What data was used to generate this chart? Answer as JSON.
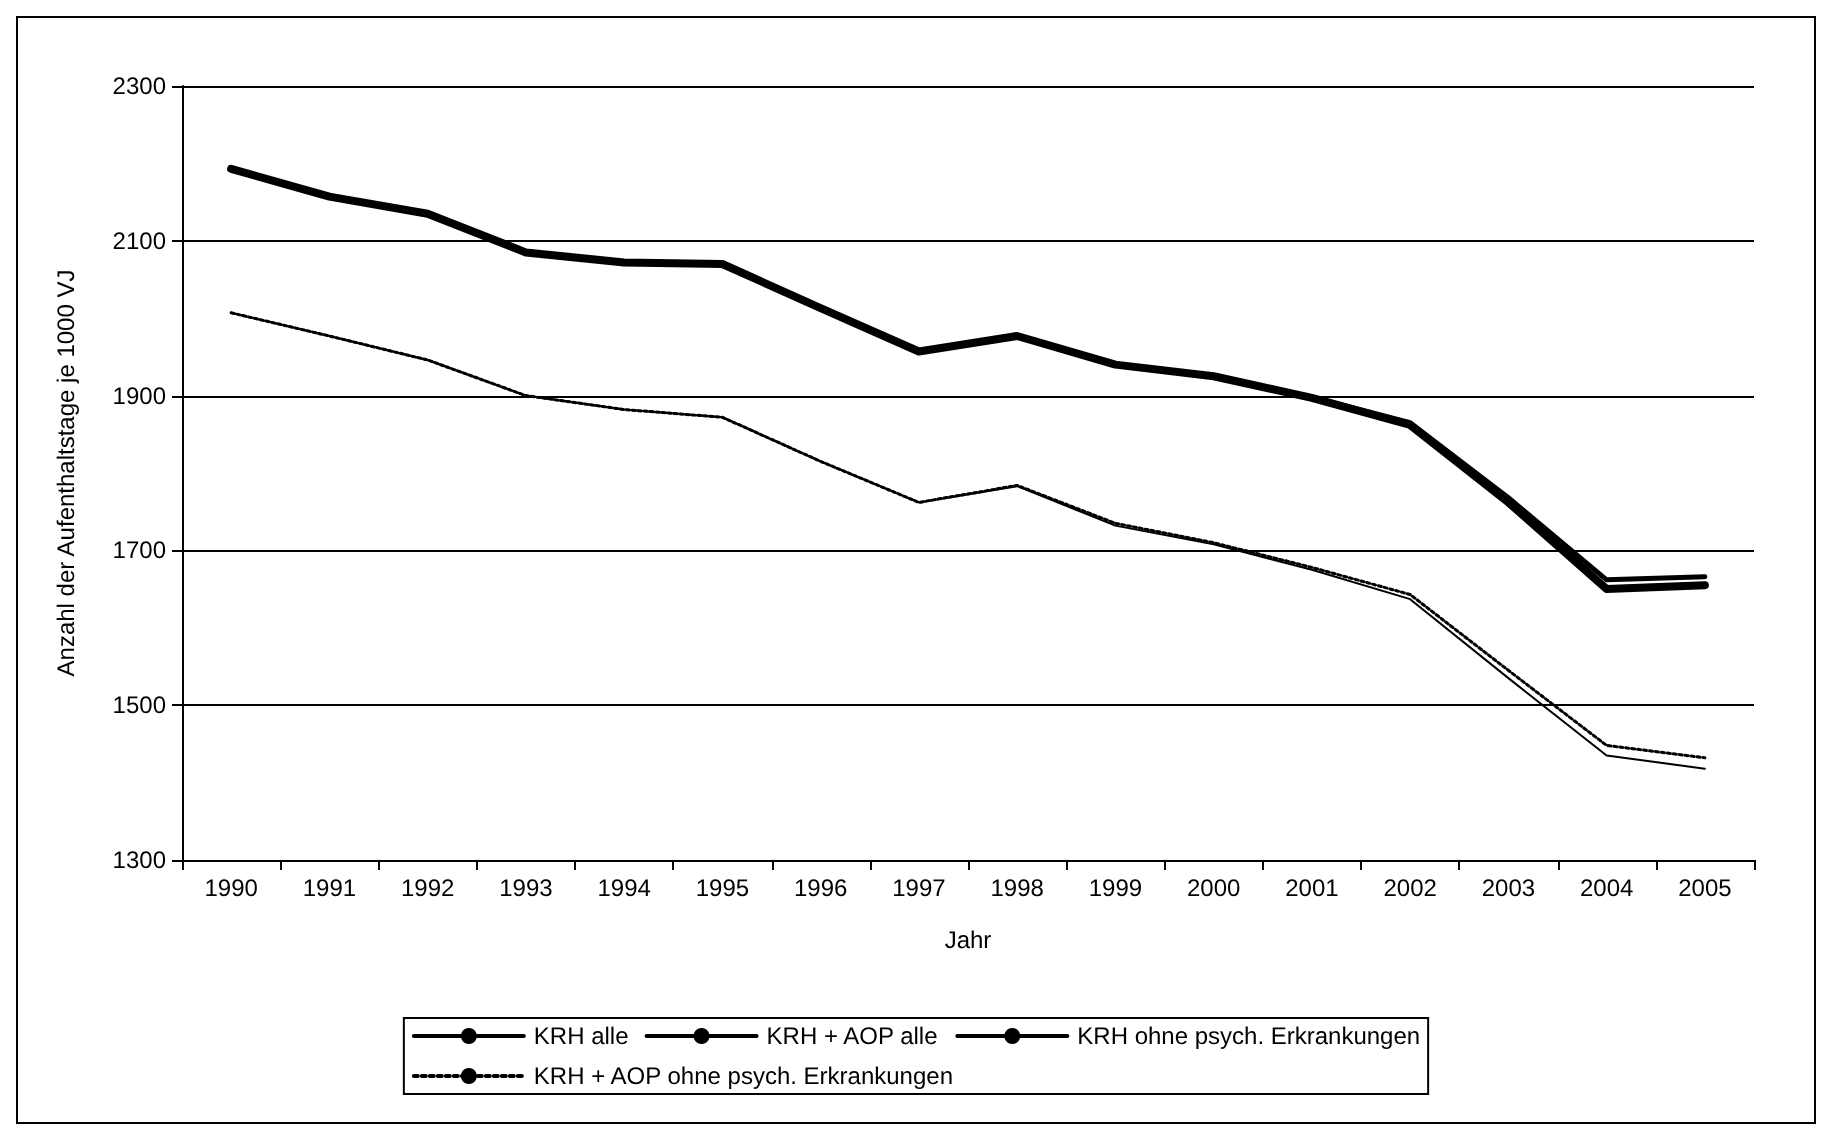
{
  "chart_data": {
    "type": "line",
    "xlabel": "Jahr",
    "ylabel": "Anzahl der Aufenthaltstage je 1000 VJ",
    "categories": [
      "1990",
      "1991",
      "1992",
      "1993",
      "1994",
      "1995",
      "1996",
      "1997",
      "1998",
      "1999",
      "2000",
      "2001",
      "2002",
      "2003",
      "2004",
      "2005"
    ],
    "series": [
      {
        "name": "KRH alle",
        "color": "#000000",
        "line_style": "solid",
        "values": [
          2193,
          2157,
          2135,
          2085,
          2072,
          2070,
          2013,
          1957,
          1977,
          1940,
          1925,
          1897,
          1862,
          1762,
          1650,
          1655
        ]
      },
      {
        "name": "KRH + AOP alle",
        "color": "#000000",
        "line_style": "solid",
        "values": [
          2193,
          2157,
          2135,
          2085,
          2072,
          2070,
          2013,
          1957,
          1977,
          1940,
          1925,
          1898,
          1865,
          1768,
          1662,
          1666
        ]
      },
      {
        "name": "KRH ohne psych. Erkrankungen",
        "color": "#000000",
        "line_style": "solid",
        "values": [
          2007,
          1977,
          1946,
          1900,
          1882,
          1872,
          1815,
          1762,
          1783,
          1732,
          1708,
          1675,
          1637,
          1535,
          1435,
          1418
        ]
      },
      {
        "name": "KRH + AOP ohne psych. Erkrankungen",
        "color": "#000000",
        "line_style": "dotted",
        "values": [
          2007,
          1977,
          1946,
          1900,
          1882,
          1872,
          1815,
          1762,
          1784,
          1735,
          1710,
          1678,
          1643,
          1545,
          1448,
          1432
        ]
      }
    ],
    "ylim": [
      1300,
      2300
    ],
    "yticks": [
      1300,
      1500,
      1700,
      1900,
      2100,
      2300
    ],
    "grid": "y",
    "legend": "bottom",
    "marker": "none"
  }
}
